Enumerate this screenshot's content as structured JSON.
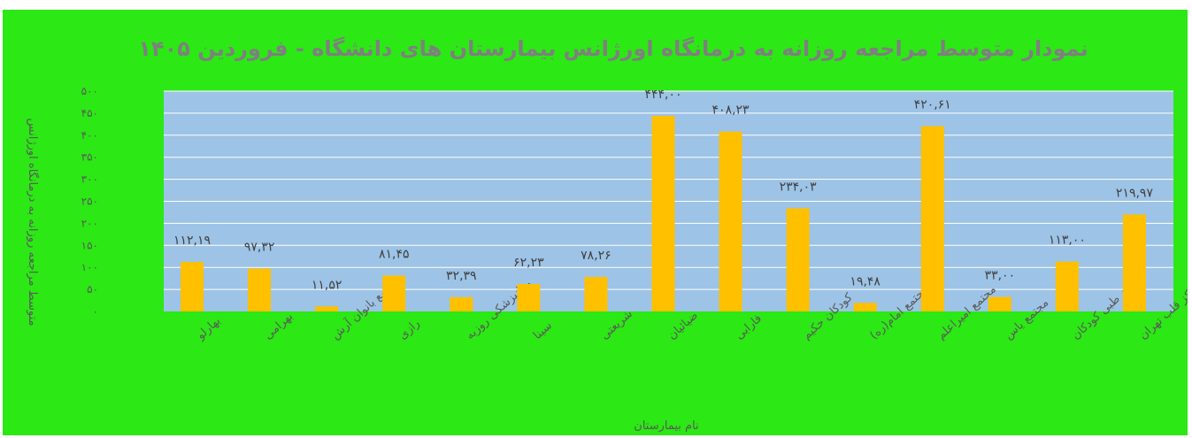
{
  "chart_data": {
    "type": "bar",
    "title": "نمودار متوسط مراجعه روزانه به درمانگاه اورژانس بیمارستان های دانشگاه - فروردین ۱۴۰۵",
    "xlabel": "نام بیمارستان",
    "ylabel": "متوسط مراجعه روزانه به درمانگاه اورژانس",
    "ylim": [
      0,
      500
    ],
    "y_ticks": [
      "۰",
      "۵۰",
      "۱۰۰",
      "۱۵۰",
      "۲۰۰",
      "۲۵۰",
      "۳۰۰",
      "۳۵۰",
      "۴۰۰",
      "۴۵۰",
      "۵۰۰"
    ],
    "grid": true,
    "categories": [
      "بهارلو",
      "بهرامی",
      "جامع بانوان آرش",
      "رازی",
      "روانپزشکی روزبه",
      "سینا",
      "شریعتی",
      "ضیائیان",
      "فارابی",
      "کودکان حکیم",
      "مجتمع امام(ره)",
      "مجتمع امیراعلم",
      "مجتمع یاس",
      "مرکز طبی کودکان",
      "مرکز قلب تهران"
    ],
    "values": [
      112.19,
      97.32,
      11.52,
      81.45,
      32.39,
      62.23,
      78.26,
      444.0,
      408.23,
      234.03,
      19.48,
      420.61,
      33.0,
      113.0,
      219.97
    ],
    "data_labels": [
      "۱۱۲,۱۹",
      "۹۷,۳۲",
      "۱۱,۵۲",
      "۸۱,۴۵",
      "۳۲,۳۹",
      "۶۲,۲۳",
      "۷۸,۲۶",
      "۴۴۴,۰۰",
      "۴۰۸,۲۳",
      "۲۳۴,۰۳",
      "۱۹,۴۸",
      "۴۲۰,۶۱",
      "۳۳,۰۰",
      "۱۱۳,۰۰",
      "۲۱۹,۹۷"
    ],
    "colors": {
      "background": "#2CE815",
      "plot_area": "#9DC3E6",
      "bar": "#FFC000",
      "gridline": "#FFFFFF",
      "title": "#7F7F7F"
    }
  }
}
